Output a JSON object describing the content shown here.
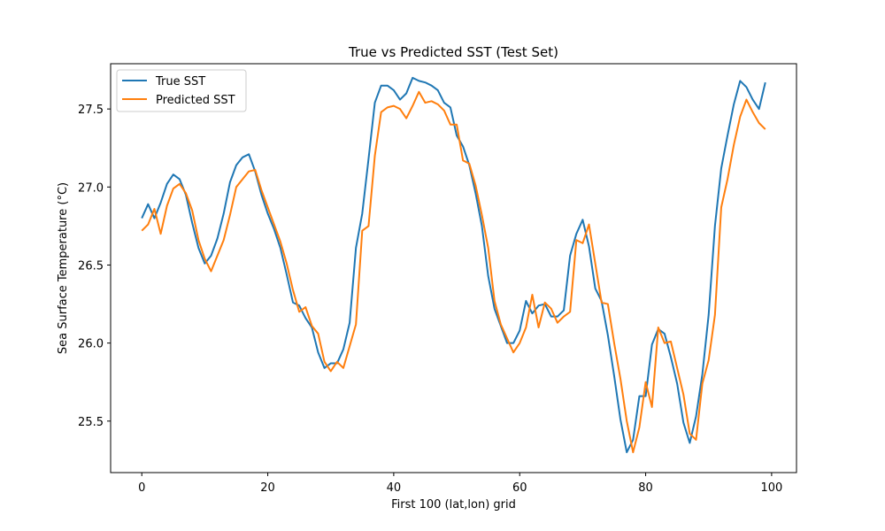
{
  "chart_data": {
    "type": "line",
    "title": "True vs Predicted SST (Test Set)",
    "xlabel": "First 100 (lat,lon) grid",
    "ylabel": "Sea Surface Temperature (°C)",
    "xlim": [
      -4.95,
      103.95
    ],
    "ylim": [
      25.17,
      27.79
    ],
    "xticks": [
      0,
      20,
      40,
      60,
      80,
      100
    ],
    "xtick_labels": [
      "0",
      "20",
      "40",
      "60",
      "80",
      "100"
    ],
    "yticks": [
      25.5,
      26.0,
      26.5,
      27.0,
      27.5
    ],
    "ytick_labels": [
      "25.5",
      "26.0",
      "26.5",
      "27.0",
      "27.5"
    ],
    "grid": false,
    "legend_position": "top-left",
    "series": [
      {
        "name": "True SST",
        "color": "#1f77b4",
        "values": [
          26.8,
          26.89,
          26.8,
          26.9,
          27.02,
          27.08,
          27.05,
          26.95,
          26.77,
          26.61,
          26.51,
          26.56,
          26.67,
          26.83,
          27.03,
          27.14,
          27.19,
          27.21,
          27.1,
          26.95,
          26.83,
          26.73,
          26.61,
          26.44,
          26.26,
          26.24,
          26.16,
          26.1,
          25.94,
          25.84,
          25.87,
          25.87,
          25.96,
          26.13,
          26.61,
          26.83,
          27.18,
          27.54,
          27.65,
          27.65,
          27.62,
          27.56,
          27.6,
          27.7,
          27.68,
          27.67,
          27.65,
          27.62,
          27.54,
          27.51,
          27.33,
          27.26,
          27.14,
          26.96,
          26.75,
          26.43,
          26.22,
          26.11,
          26.0,
          26.0,
          26.08,
          26.27,
          26.19,
          26.24,
          26.25,
          26.17,
          26.17,
          26.21,
          26.56,
          26.7,
          26.79,
          26.62,
          26.35,
          26.27,
          26.05,
          25.79,
          25.51,
          25.3,
          25.38,
          25.66,
          25.66,
          25.99,
          26.09,
          26.06,
          25.91,
          25.74,
          25.49,
          25.36,
          25.53,
          25.8,
          26.18,
          26.75,
          27.12,
          27.33,
          27.53,
          27.68,
          27.64,
          27.56,
          27.5,
          27.67
        ]
      },
      {
        "name": "Predicted SST",
        "color": "#ff7f0e",
        "values": [
          26.72,
          26.76,
          26.86,
          26.7,
          26.88,
          26.99,
          27.02,
          26.96,
          26.85,
          26.66,
          26.54,
          26.46,
          26.56,
          26.66,
          26.82,
          27.0,
          27.05,
          27.1,
          27.11,
          26.98,
          26.87,
          26.76,
          26.65,
          26.51,
          26.34,
          26.2,
          26.23,
          26.11,
          26.06,
          25.88,
          25.82,
          25.88,
          25.84,
          25.98,
          26.12,
          26.72,
          26.75,
          27.2,
          27.48,
          27.51,
          27.52,
          27.5,
          27.44,
          27.52,
          27.61,
          27.54,
          27.55,
          27.53,
          27.49,
          27.4,
          27.4,
          27.17,
          27.15,
          27.01,
          26.82,
          26.61,
          26.27,
          26.12,
          26.03,
          25.94,
          26.0,
          26.1,
          26.31,
          26.1,
          26.26,
          26.22,
          26.13,
          26.17,
          26.2,
          26.66,
          26.64,
          26.76,
          26.51,
          26.26,
          26.25,
          26.0,
          25.77,
          25.5,
          25.3,
          25.46,
          25.75,
          25.59,
          26.1,
          26.0,
          26.01,
          25.84,
          25.67,
          25.42,
          25.38,
          25.74,
          25.89,
          26.18,
          26.87,
          27.05,
          27.27,
          27.45,
          27.56,
          27.48,
          27.41,
          27.37
        ]
      }
    ]
  }
}
